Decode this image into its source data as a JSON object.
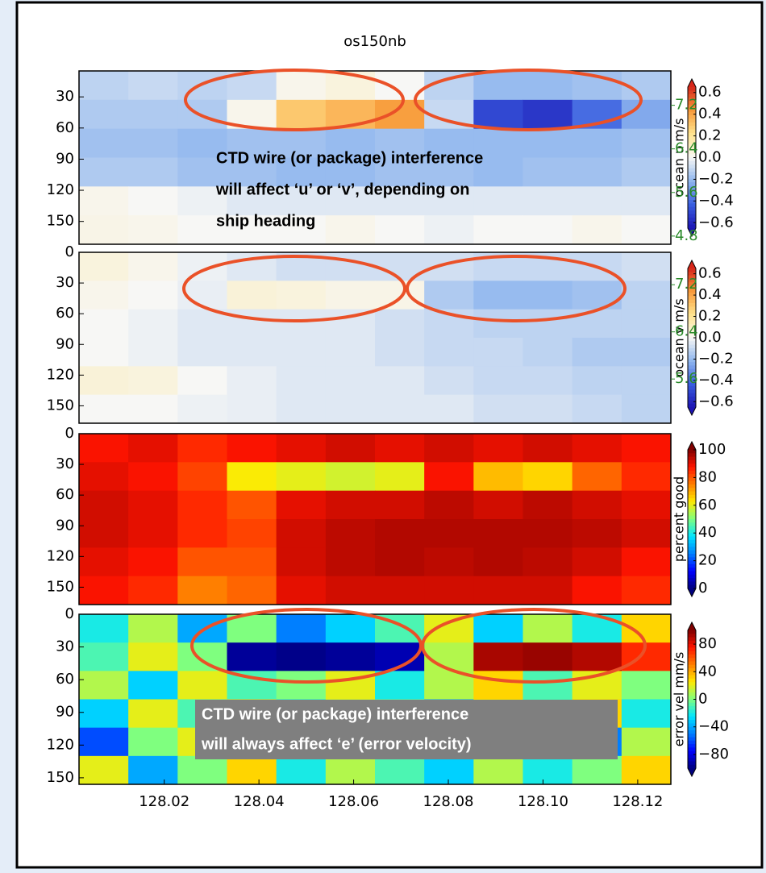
{
  "chart_data": [
    {
      "type": "heatmap",
      "title": "os150nb",
      "colorbar_label": "ocean u m/s",
      "ylim": [
        5,
        172
      ],
      "yticks": [
        30,
        60,
        90,
        120,
        150
      ],
      "y_inverted": true,
      "xlim": [
        128.002,
        128.127
      ],
      "y2lim": [
        4.65,
        7.83
      ],
      "y2ticks": [
        7.2,
        6.4,
        5.6,
        4.8
      ],
      "y2color": "#2a8a2a",
      "clim": [
        -0.65,
        0.65
      ],
      "cticks": [
        0.6,
        0.4,
        0.2,
        {
          "value": 0,
          "label": "0.0"
        },
        {
          "value": -0.2,
          "label": "−0.2"
        },
        {
          "value": -0.4,
          "label": "−0.4"
        },
        {
          "value": -0.6,
          "label": "−0.6"
        }
      ],
      "colormap": [
        "#1c14b4",
        "#3a5fe0",
        "#8fb6ee",
        "#f7f7f5",
        "#ffe48e",
        "#f89a3a",
        "#d7261a"
      ],
      "annotation": [
        "CTD wire (or package) interference",
        "will affect ‘u’ or ‘v’, depending on",
        "ship heading"
      ],
      "values": [
        [
          -0.12,
          -0.1,
          -0.12,
          -0.1,
          0.02,
          0.05,
          0.0,
          -0.12,
          -0.2,
          -0.2,
          -0.18,
          -0.15
        ],
        [
          -0.15,
          -0.15,
          -0.15,
          0.02,
          0.3,
          0.35,
          0.42,
          -0.1,
          -0.5,
          -0.55,
          -0.4,
          -0.25
        ],
        [
          -0.18,
          -0.18,
          -0.2,
          -0.18,
          -0.18,
          -0.2,
          -0.18,
          -0.2,
          -0.2,
          -0.2,
          -0.2,
          -0.18
        ],
        [
          -0.15,
          -0.15,
          -0.18,
          -0.18,
          -0.2,
          -0.2,
          -0.18,
          -0.18,
          -0.2,
          -0.18,
          -0.18,
          -0.15
        ],
        [
          0.02,
          0.0,
          -0.02,
          -0.05,
          -0.05,
          -0.05,
          -0.05,
          -0.05,
          -0.05,
          -0.05,
          -0.05,
          -0.05
        ],
        [
          0.03,
          0.02,
          0.0,
          0.0,
          0.0,
          0.02,
          0.0,
          -0.02,
          0.0,
          0.0,
          0.02,
          0.0
        ]
      ]
    },
    {
      "type": "heatmap",
      "colorbar_label": "ocean v m/s",
      "ylim": [
        0,
        167
      ],
      "yticks": [
        0,
        30,
        60,
        90,
        120,
        150
      ],
      "y_inverted": true,
      "xlim": [
        128.002,
        128.127
      ],
      "y2lim": [
        4.85,
        7.75
      ],
      "y2ticks": [
        7.2,
        6.4,
        5.6
      ],
      "y2color": "#2a8a2a",
      "clim": [
        -0.65,
        0.65
      ],
      "cticks": [
        0.6,
        0.4,
        0.2,
        {
          "value": 0,
          "label": "0.0"
        },
        {
          "value": -0.2,
          "label": "−0.2"
        },
        {
          "value": -0.4,
          "label": "−0.4"
        },
        {
          "value": -0.6,
          "label": "−0.6"
        }
      ],
      "colormap": [
        "#1c14b4",
        "#3a5fe0",
        "#8fb6ee",
        "#f7f7f5",
        "#ffe48e",
        "#f89a3a",
        "#d7261a"
      ],
      "values": [
        [
          0.05,
          0.02,
          -0.02,
          -0.05,
          -0.08,
          -0.08,
          -0.08,
          -0.08,
          -0.1,
          -0.1,
          -0.1,
          -0.08
        ],
        [
          0.02,
          0.0,
          -0.03,
          0.06,
          0.05,
          0.03,
          0.03,
          -0.15,
          -0.2,
          -0.2,
          -0.18,
          -0.12
        ],
        [
          0.0,
          -0.02,
          -0.05,
          -0.05,
          -0.05,
          -0.05,
          -0.08,
          -0.1,
          -0.12,
          -0.12,
          -0.12,
          -0.12
        ],
        [
          0.0,
          -0.02,
          -0.05,
          -0.05,
          -0.05,
          -0.05,
          -0.08,
          -0.1,
          -0.1,
          -0.12,
          -0.15,
          -0.15
        ],
        [
          0.06,
          0.05,
          0.0,
          -0.03,
          -0.05,
          -0.05,
          -0.05,
          -0.08,
          -0.1,
          -0.1,
          -0.12,
          -0.12
        ],
        [
          0.0,
          0.0,
          -0.02,
          -0.03,
          -0.05,
          -0.05,
          -0.05,
          -0.05,
          -0.08,
          -0.08,
          -0.1,
          -0.12
        ]
      ]
    },
    {
      "type": "heatmap",
      "colorbar_label": "percent good",
      "ylim": [
        0,
        167
      ],
      "yticks": [
        0,
        30,
        60,
        90,
        120,
        150
      ],
      "y_inverted": true,
      "xlim": [
        128.002,
        128.127
      ],
      "clim": [
        0,
        100
      ],
      "cticks": [
        100,
        80,
        60,
        40,
        20,
        0
      ],
      "colormap": [
        "#00007f",
        "#0000ff",
        "#007fff",
        "#00e5ff",
        "#7fff7f",
        "#ffea00",
        "#ff7f00",
        "#ff1400",
        "#7f0000"
      ],
      "values": [
        [
          88,
          90,
          85,
          88,
          90,
          92,
          90,
          92,
          90,
          92,
          90,
          88
        ],
        [
          90,
          88,
          82,
          62,
          60,
          58,
          60,
          88,
          68,
          65,
          78,
          85
        ],
        [
          92,
          90,
          85,
          80,
          90,
          92,
          92,
          94,
          92,
          94,
          92,
          90
        ],
        [
          92,
          90,
          85,
          82,
          92,
          94,
          95,
          95,
          95,
          95,
          94,
          92
        ],
        [
          90,
          88,
          80,
          80,
          92,
          94,
          95,
          94,
          95,
          94,
          92,
          88
        ],
        [
          88,
          85,
          75,
          78,
          90,
          92,
          92,
          92,
          92,
          92,
          88,
          85
        ]
      ]
    },
    {
      "type": "heatmap",
      "colorbar_label": "error vel mm/s",
      "ylim": [
        0,
        156
      ],
      "yticks": [
        0,
        30,
        60,
        90,
        120,
        150
      ],
      "y_inverted": true,
      "xlim": [
        128.002,
        128.127
      ],
      "xticks": [
        128.02,
        128.04,
        128.06,
        128.08,
        {
          "value": 128.1,
          "label": "128.10"
        },
        128.12
      ],
      "clim": [
        -100,
        100
      ],
      "cticks": [
        80,
        40,
        0,
        {
          "value": -40,
          "label": "−40"
        },
        {
          "value": -80,
          "label": "−80"
        }
      ],
      "colormap": [
        "#00007f",
        "#0000ff",
        "#007fff",
        "#00e5ff",
        "#7fff7f",
        "#ffea00",
        "#ff7f00",
        "#ff1400",
        "#7f0000"
      ],
      "annotation": [
        "CTD wire (or package) interference",
        "will always affect ‘e’ (error velocity)"
      ],
      "values": [
        [
          -20,
          10,
          -40,
          0,
          -50,
          -30,
          -10,
          20,
          -30,
          10,
          -20,
          30
        ],
        [
          -10,
          20,
          0,
          -95,
          -98,
          -95,
          -90,
          10,
          92,
          95,
          90,
          70
        ],
        [
          10,
          -30,
          20,
          -10,
          0,
          20,
          -20,
          10,
          30,
          -10,
          20,
          0
        ],
        [
          -30,
          20,
          -10,
          30,
          -20,
          10,
          0,
          -40,
          20,
          -10,
          30,
          -20
        ],
        [
          -60,
          0,
          20,
          -20,
          10,
          -30,
          20,
          0,
          -20,
          20,
          -50,
          10
        ],
        [
          20,
          -40,
          0,
          30,
          -20,
          10,
          -10,
          -30,
          10,
          -20,
          0,
          30
        ]
      ]
    }
  ]
}
